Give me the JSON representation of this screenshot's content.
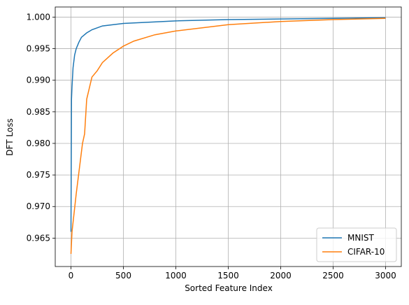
{
  "chart_data": {
    "type": "line",
    "xlabel": "Sorted Feature Index",
    "ylabel": "DFT Loss",
    "xlim": [
      -150,
      3150
    ],
    "ylim": [
      0.9605,
      1.0016
    ],
    "xticks": [
      0,
      500,
      1000,
      1500,
      2000,
      2500,
      3000
    ],
    "yticks": [
      {
        "value": 0.965,
        "label": "0.965"
      },
      {
        "value": 0.97,
        "label": "0.970"
      },
      {
        "value": 0.975,
        "label": "0.975"
      },
      {
        "value": 0.98,
        "label": "0.980"
      },
      {
        "value": 0.985,
        "label": "0.985"
      },
      {
        "value": 0.99,
        "label": "0.990"
      },
      {
        "value": 0.995,
        "label": "0.995"
      },
      {
        "value": 1,
        "label": "1.000"
      }
    ],
    "grid": true,
    "legend": "lower right",
    "series": [
      {
        "name": "MNIST",
        "color": "#1f77b4",
        "x": [
          0,
          5,
          10,
          20,
          35,
          50,
          75,
          100,
          150,
          200,
          300,
          500,
          1000,
          1500,
          2000,
          3000
        ],
        "values": [
          0.966,
          0.987,
          0.989,
          0.992,
          0.994,
          0.995,
          0.996,
          0.9968,
          0.9975,
          0.998,
          0.9986,
          0.999,
          0.9994,
          0.9996,
          0.9997,
          0.9999
        ]
      },
      {
        "name": "CIFAR-10",
        "color": "#ff7f0e",
        "x": [
          0,
          10,
          30,
          50,
          80,
          110,
          130,
          150,
          200,
          250,
          300,
          400,
          500,
          600,
          800,
          1000,
          1500,
          2000,
          2500,
          3000
        ],
        "values": [
          0.9625,
          0.966,
          0.969,
          0.972,
          0.976,
          0.98,
          0.9815,
          0.987,
          0.9905,
          0.9915,
          0.9928,
          0.9943,
          0.9954,
          0.9962,
          0.9972,
          0.9978,
          0.9988,
          0.9993,
          0.9996,
          0.9998
        ]
      }
    ]
  }
}
